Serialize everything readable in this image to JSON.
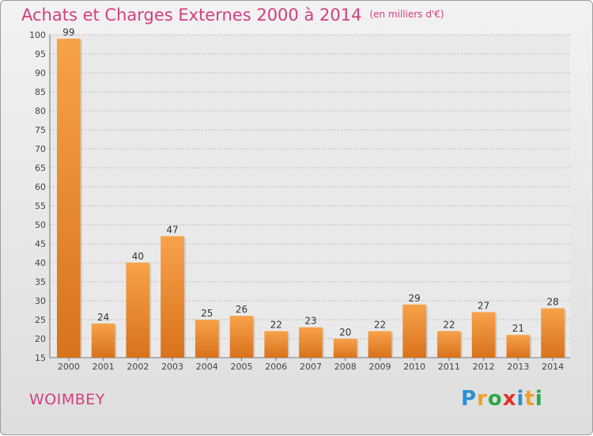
{
  "header": {
    "title": "Achats et Charges Externes 2000 à 2014",
    "unit": "(en milliers d'€)"
  },
  "footer": {
    "commune": "WOIMBEY",
    "brand": "Proxiti"
  },
  "colors": {
    "bar_light": "#f7a24a",
    "bar_dark": "#d9721c",
    "title": "#d2407d",
    "grid": "#bdbdbd"
  },
  "chart_data": {
    "type": "bar",
    "categories": [
      "2000",
      "2001",
      "2002",
      "2003",
      "2004",
      "2005",
      "2006",
      "2007",
      "2008",
      "2009",
      "2010",
      "2011",
      "2012",
      "2013",
      "2014"
    ],
    "values": [
      99,
      24,
      40,
      47,
      25,
      26,
      22,
      23,
      20,
      22,
      29,
      22,
      27,
      21,
      28
    ],
    "ylim": [
      15,
      100
    ],
    "yticks": [
      15,
      20,
      25,
      30,
      35,
      40,
      45,
      50,
      55,
      60,
      65,
      70,
      75,
      80,
      85,
      90,
      95,
      100
    ],
    "grid": true
  }
}
